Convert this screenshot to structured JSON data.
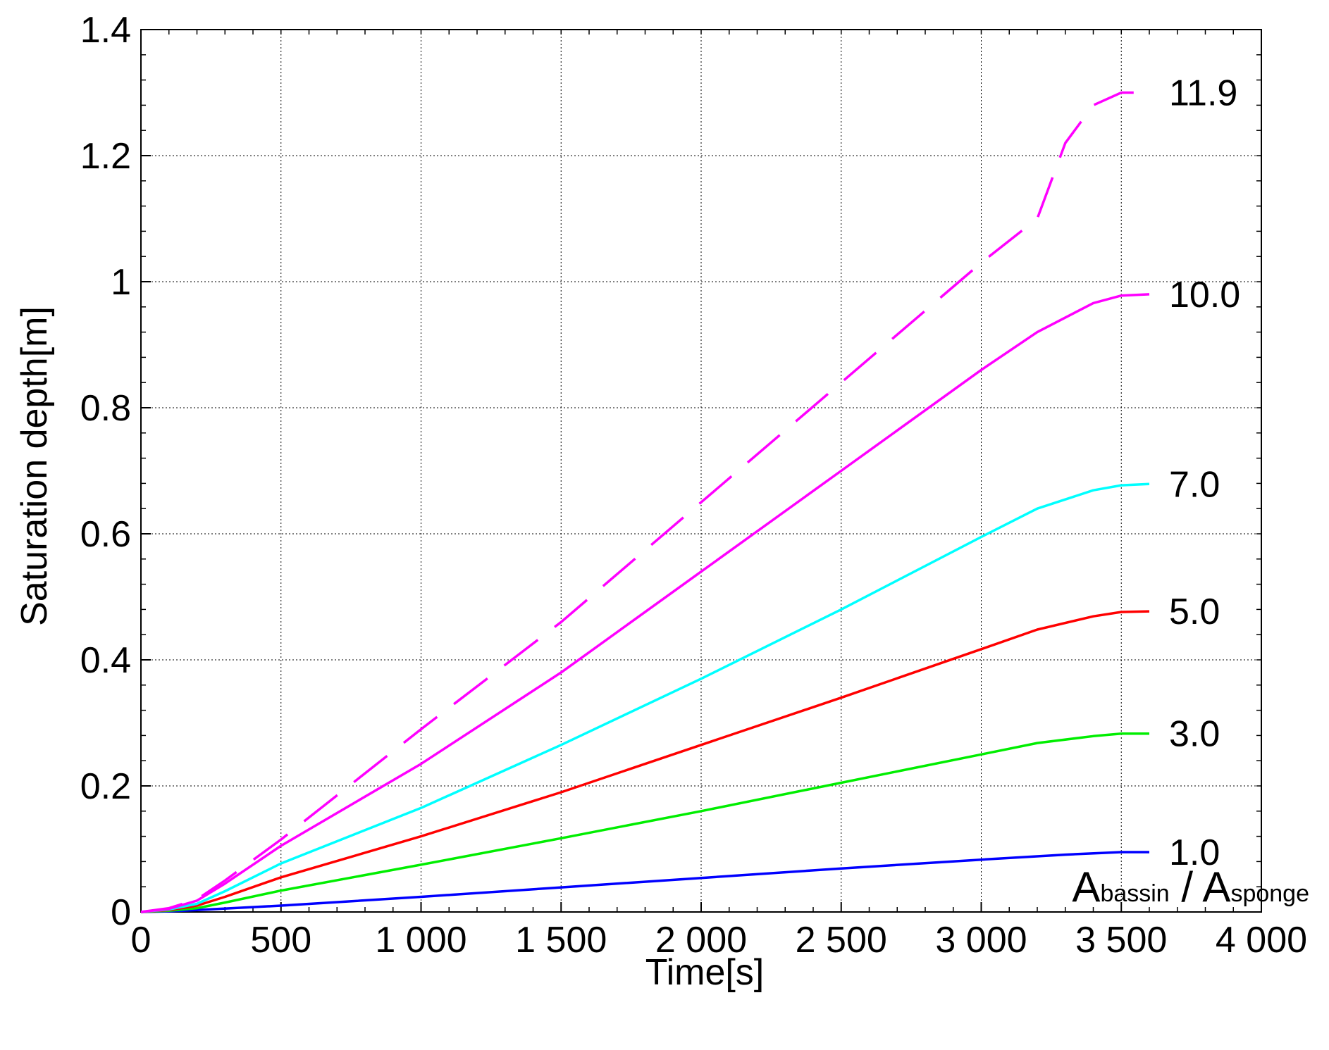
{
  "chart_data": {
    "type": "line",
    "xlabel": "Time[s]",
    "ylabel": "Saturation depth[m]",
    "xlim": [
      0,
      4000
    ],
    "ylim": [
      0,
      1.4
    ],
    "xticks": [
      0,
      500,
      1000,
      1500,
      2000,
      2500,
      3000,
      3500,
      4000
    ],
    "xtick_labels": [
      "0",
      "500",
      "1 000",
      "1 500",
      "2 000",
      "2 500",
      "3 000",
      "3 500",
      "4 000"
    ],
    "yticks": [
      0,
      0.2,
      0.4,
      0.6,
      0.8,
      1.0,
      1.2,
      1.4
    ],
    "ytick_labels": [
      "0",
      "0.2",
      "0.4",
      "0.6",
      "0.8",
      "1",
      "1.2",
      "1.4"
    ],
    "grid": true,
    "ratio_label": {
      "a1": "A",
      "sub1": "bassin",
      "sep": " / ",
      "a2": "A",
      "sub2": "sponge"
    },
    "series": [
      {
        "name": "1.0",
        "color": "#0000ff",
        "style": "solid",
        "x": [
          0,
          100,
          200,
          500,
          1000,
          1500,
          2000,
          2500,
          3000,
          3300,
          3500,
          3600
        ],
        "y": [
          0,
          0.001,
          0.003,
          0.01,
          0.024,
          0.039,
          0.054,
          0.069,
          0.083,
          0.091,
          0.095,
          0.095
        ]
      },
      {
        "name": "3.0",
        "color": "#00ee00",
        "style": "solid",
        "x": [
          0,
          100,
          200,
          300,
          500,
          1000,
          1500,
          2000,
          2500,
          3000,
          3200,
          3400,
          3500,
          3600
        ],
        "y": [
          0,
          0.002,
          0.006,
          0.015,
          0.034,
          0.075,
          0.117,
          0.16,
          0.205,
          0.25,
          0.268,
          0.279,
          0.283,
          0.283
        ]
      },
      {
        "name": "5.0",
        "color": "#ff0000",
        "style": "solid",
        "x": [
          0,
          100,
          200,
          300,
          500,
          1000,
          1500,
          2000,
          2500,
          3000,
          3200,
          3400,
          3500,
          3600
        ],
        "y": [
          0,
          0.003,
          0.01,
          0.024,
          0.055,
          0.12,
          0.19,
          0.265,
          0.34,
          0.417,
          0.448,
          0.469,
          0.476,
          0.477
        ]
      },
      {
        "name": "7.0",
        "color": "#00ffff",
        "style": "solid",
        "x": [
          0,
          100,
          200,
          300,
          500,
          1000,
          1500,
          2000,
          2500,
          3000,
          3200,
          3400,
          3500,
          3600
        ],
        "y": [
          0,
          0.004,
          0.013,
          0.033,
          0.077,
          0.165,
          0.265,
          0.37,
          0.48,
          0.595,
          0.64,
          0.669,
          0.677,
          0.679
        ]
      },
      {
        "name": "10.0",
        "color": "#ff00ff",
        "style": "solid",
        "x": [
          0,
          100,
          200,
          300,
          500,
          1000,
          1500,
          2000,
          2500,
          3000,
          3200,
          3400,
          3500,
          3600
        ],
        "y": [
          0,
          0.005,
          0.018,
          0.045,
          0.105,
          0.235,
          0.38,
          0.54,
          0.7,
          0.86,
          0.92,
          0.966,
          0.978,
          0.98
        ]
      },
      {
        "name": "11.9",
        "color": "#ff00ff",
        "style": "dashed",
        "x": [
          0,
          100,
          200,
          300,
          500,
          1000,
          1500,
          2000,
          2500,
          3000,
          3200,
          3300,
          3400,
          3500,
          3600
        ],
        "y": [
          0,
          0.006,
          0.02,
          0.05,
          0.115,
          0.29,
          0.46,
          0.65,
          0.84,
          1.03,
          1.1,
          1.22,
          1.28,
          1.3,
          1.3
        ]
      }
    ]
  }
}
